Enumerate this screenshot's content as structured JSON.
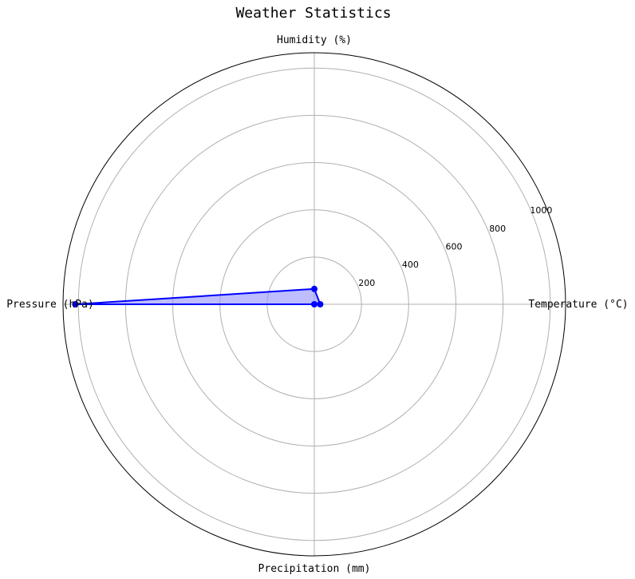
{
  "chart_data": {
    "type": "radar",
    "title": "Weather Statistics",
    "categories": [
      "Temperature (°C)",
      "Humidity (%)",
      "Pressure (hPa)",
      "Precipitation (mm)"
    ],
    "series": [
      {
        "values": [
          25,
          65,
          1013,
          0
        ]
      }
    ],
    "rlim": [
      0,
      1065
    ],
    "r_ticks": [
      200,
      400,
      600,
      800,
      1000
    ],
    "grid": true,
    "colors": {
      "series": "#0000ff",
      "fill": "#9999ff",
      "grid": "#b0b0b0",
      "frame": "#000000"
    }
  }
}
